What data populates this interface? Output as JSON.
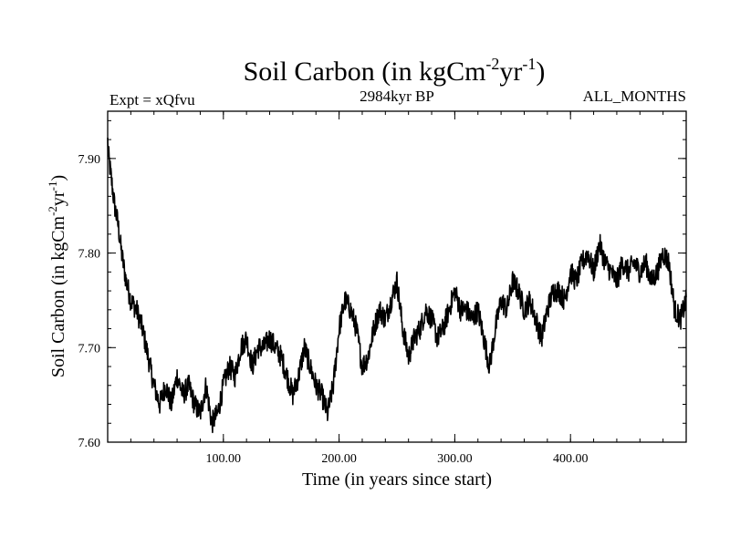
{
  "chart_data": {
    "type": "line",
    "title": {
      "main": "Soil Carbon (in kgCm",
      "exp1": "-2",
      "mid": "yr",
      "exp2": "-1",
      "end": ")"
    },
    "expt_label": "Expt = xQfvu",
    "period_label": "2984kyr BP",
    "months_label": "ALL_MONTHS",
    "xlabel": "Time (in years since start)",
    "ylabel": {
      "main": "Soil Carbon (in kgCm",
      "exp1": "-2",
      "mid": "yr",
      "exp2": "-1",
      "end": ")"
    },
    "xlim": [
      0,
      500
    ],
    "ylim": [
      7.6,
      7.95
    ],
    "x_major_ticks": [
      100,
      200,
      300,
      400
    ],
    "x_major_labels": [
      "100.00",
      "200.00",
      "300.00",
      "400.00"
    ],
    "x_minor_step": 20,
    "y_major_ticks": [
      7.6,
      7.7,
      7.8,
      7.9
    ],
    "y_major_labels": [
      "7.60",
      "7.70",
      "7.80",
      "7.90"
    ],
    "y_minor_step": 0.02,
    "series": [
      {
        "name": "soil carbon",
        "color": "#000000",
        "x": [
          0,
          3,
          6,
          9,
          12,
          16,
          20,
          25,
          30,
          35,
          40,
          45,
          50,
          55,
          60,
          65,
          70,
          75,
          80,
          85,
          90,
          95,
          100,
          105,
          110,
          115,
          120,
          125,
          130,
          135,
          140,
          145,
          150,
          155,
          160,
          165,
          170,
          175,
          180,
          185,
          190,
          195,
          200,
          205,
          210,
          215,
          220,
          225,
          230,
          235,
          240,
          245,
          250,
          255,
          260,
          265,
          270,
          275,
          280,
          285,
          290,
          295,
          300,
          305,
          310,
          315,
          320,
          325,
          330,
          335,
          340,
          345,
          350,
          355,
          360,
          365,
          370,
          375,
          380,
          385,
          390,
          395,
          400,
          405,
          410,
          415,
          420,
          425,
          430,
          435,
          440,
          445,
          450,
          455,
          460,
          465,
          470,
          475,
          480,
          485,
          490,
          495,
          500
        ],
        "y": [
          7.91,
          7.88,
          7.85,
          7.83,
          7.8,
          7.77,
          7.75,
          7.74,
          7.72,
          7.69,
          7.66,
          7.64,
          7.66,
          7.64,
          7.67,
          7.65,
          7.66,
          7.64,
          7.63,
          7.66,
          7.62,
          7.63,
          7.66,
          7.68,
          7.67,
          7.7,
          7.71,
          7.68,
          7.7,
          7.7,
          7.71,
          7.7,
          7.69,
          7.67,
          7.65,
          7.67,
          7.7,
          7.68,
          7.66,
          7.65,
          7.63,
          7.66,
          7.72,
          7.75,
          7.74,
          7.72,
          7.68,
          7.69,
          7.72,
          7.74,
          7.73,
          7.75,
          7.77,
          7.72,
          7.69,
          7.71,
          7.72,
          7.74,
          7.73,
          7.71,
          7.72,
          7.74,
          7.76,
          7.74,
          7.74,
          7.73,
          7.74,
          7.71,
          7.68,
          7.72,
          7.75,
          7.74,
          7.77,
          7.76,
          7.74,
          7.75,
          7.73,
          7.71,
          7.74,
          7.76,
          7.76,
          7.75,
          7.78,
          7.77,
          7.79,
          7.8,
          7.78,
          7.81,
          7.79,
          7.78,
          7.77,
          7.79,
          7.78,
          7.79,
          7.78,
          7.79,
          7.77,
          7.78,
          7.8,
          7.79,
          7.74,
          7.73,
          7.75
        ],
        "noise_amplitude": 0.012
      }
    ]
  }
}
